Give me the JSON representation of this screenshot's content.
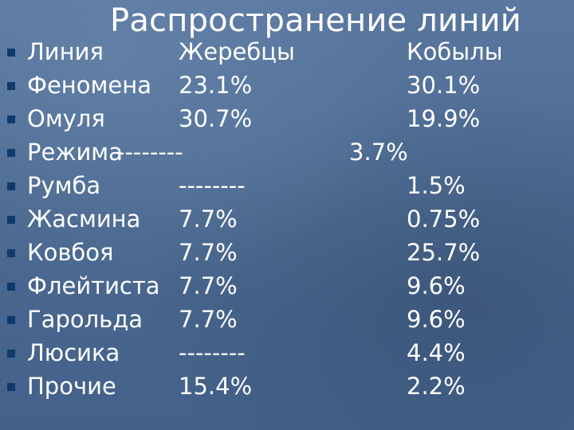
{
  "slide": {
    "title": "Распространение линий"
  },
  "table": {
    "header": {
      "name": "Линия",
      "stallions": "Жеребцы",
      "mares": "Кобылы"
    },
    "rows": [
      {
        "name": "Феномена",
        "stallions": "23.1%",
        "mares": "30.1%"
      },
      {
        "name": "Омуля",
        "stallions": "30.7%",
        "mares": "19.9%"
      },
      {
        "name": "Режима",
        "stallions": "--------",
        "mares": "3.7%"
      },
      {
        "name": "Румба",
        "stallions": "--------",
        "mares": "1.5%"
      },
      {
        "name": "Жасмина",
        "stallions": "7.7%",
        "mares": "0.75%"
      },
      {
        "name": "Ковбоя",
        "stallions": "7.7%",
        "mares": "25.7%"
      },
      {
        "name": "Флейтиста",
        "stallions": "7.7%",
        "mares": "9.6%"
      },
      {
        "name": "Гарольда",
        "stallions": "7.7%",
        "mares": "9.6%"
      },
      {
        "name": "Люсика",
        "stallions": "--------",
        "mares": "4.4%"
      },
      {
        "name": "Прочие",
        "stallions": "15.4%",
        "mares": "2.2%"
      }
    ]
  }
}
